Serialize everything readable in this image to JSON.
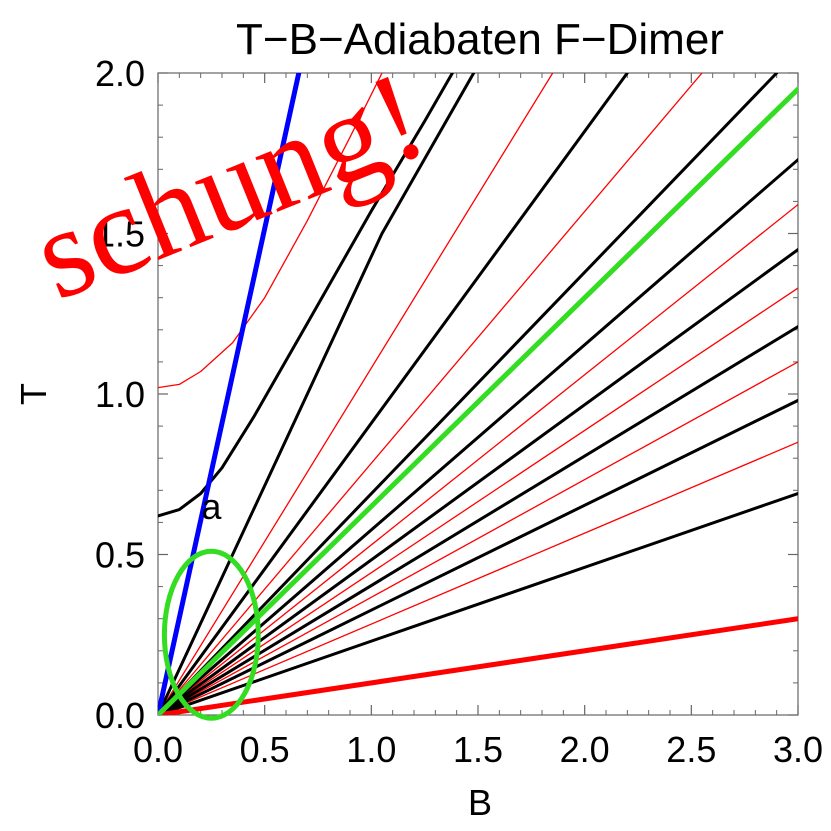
{
  "chart_data": {
    "type": "line",
    "title": "T−B−Adiabaten F−Dimer",
    "xlabel": "B",
    "ylabel": "T",
    "xlim": [
      0,
      3.0
    ],
    "ylim": [
      0,
      2.0
    ],
    "xticks": [
      "0.0",
      "0.5",
      "1.0",
      "1.5",
      "2.0",
      "2.5",
      "3.0"
    ],
    "yticks": [
      "0.0",
      "0.5",
      "1.0",
      "1.5",
      "2.0"
    ],
    "grid": false,
    "frame": true,
    "annotations": [
      {
        "text": "a",
        "x": 0.25,
        "y": 0.61
      }
    ],
    "ellipse": {
      "cx": 0.25,
      "cy": 0.25,
      "rx": 0.22,
      "ry": 0.26,
      "color": "#33dd22"
    },
    "watermark": "schung!",
    "series": [
      {
        "color": "#0000ff",
        "width": 5,
        "points": [
          [
            0,
            0
          ],
          [
            0.66,
            2.0
          ]
        ]
      },
      {
        "color": "#ff0000",
        "width": 5,
        "points": [
          [
            0,
            0
          ],
          [
            3.0,
            0.3
          ]
        ]
      },
      {
        "color": "#33dd22",
        "width": 5,
        "points": [
          [
            0,
            0
          ],
          [
            3.0,
            1.95
          ]
        ]
      },
      {
        "color": "#000000",
        "width": 3,
        "points": [
          [
            0,
            0.62
          ],
          [
            0.1,
            0.64
          ],
          [
            0.2,
            0.69
          ],
          [
            0.3,
            0.77
          ],
          [
            0.45,
            0.93
          ],
          [
            0.7,
            1.22
          ],
          [
            1.0,
            1.57
          ],
          [
            1.25,
            1.85
          ],
          [
            1.38,
            2.0
          ]
        ]
      },
      {
        "color": "#000000",
        "width": 3,
        "points": [
          [
            0,
            0
          ],
          [
            1.05,
            1.5
          ],
          [
            1.48,
            2.0
          ]
        ]
      },
      {
        "color": "#000000",
        "width": 3,
        "points": [
          [
            0,
            0
          ],
          [
            2.2,
            2.0
          ]
        ]
      },
      {
        "color": "#000000",
        "width": 3,
        "points": [
          [
            0,
            0
          ],
          [
            2.9,
            2.0
          ]
        ]
      },
      {
        "color": "#000000",
        "width": 3,
        "points": [
          [
            0,
            0
          ],
          [
            3.0,
            1.73
          ]
        ]
      },
      {
        "color": "#000000",
        "width": 3,
        "points": [
          [
            0,
            0
          ],
          [
            3.0,
            1.45
          ]
        ]
      },
      {
        "color": "#000000",
        "width": 3,
        "points": [
          [
            0,
            0
          ],
          [
            3.0,
            1.21
          ]
        ]
      },
      {
        "color": "#000000",
        "width": 3,
        "points": [
          [
            0,
            0
          ],
          [
            3.0,
            0.98
          ]
        ]
      },
      {
        "color": "#000000",
        "width": 3,
        "points": [
          [
            0,
            0
          ],
          [
            3.0,
            0.69
          ]
        ]
      },
      {
        "color": "#ff0000",
        "width": 1.3,
        "points": [
          [
            0,
            1.02
          ],
          [
            0.1,
            1.03
          ],
          [
            0.2,
            1.07
          ],
          [
            0.35,
            1.16
          ],
          [
            0.5,
            1.3
          ],
          [
            0.7,
            1.54
          ],
          [
            0.9,
            1.8
          ],
          [
            1.05,
            2.0
          ]
        ]
      },
      {
        "color": "#ff0000",
        "width": 1.3,
        "points": [
          [
            0,
            0
          ],
          [
            1.85,
            2.0
          ]
        ]
      },
      {
        "color": "#ff0000",
        "width": 1.3,
        "points": [
          [
            0,
            0
          ],
          [
            2.55,
            2.0
          ]
        ]
      },
      {
        "color": "#ff0000",
        "width": 1.3,
        "points": [
          [
            0,
            0
          ],
          [
            3.0,
            1.59
          ]
        ]
      },
      {
        "color": "#ff0000",
        "width": 1.3,
        "points": [
          [
            0,
            0
          ],
          [
            3.0,
            1.33
          ]
        ]
      },
      {
        "color": "#ff0000",
        "width": 1.3,
        "points": [
          [
            0,
            0
          ],
          [
            3.0,
            1.1
          ]
        ]
      },
      {
        "color": "#ff0000",
        "width": 1.3,
        "points": [
          [
            0,
            0
          ],
          [
            3.0,
            0.85
          ]
        ]
      }
    ]
  }
}
